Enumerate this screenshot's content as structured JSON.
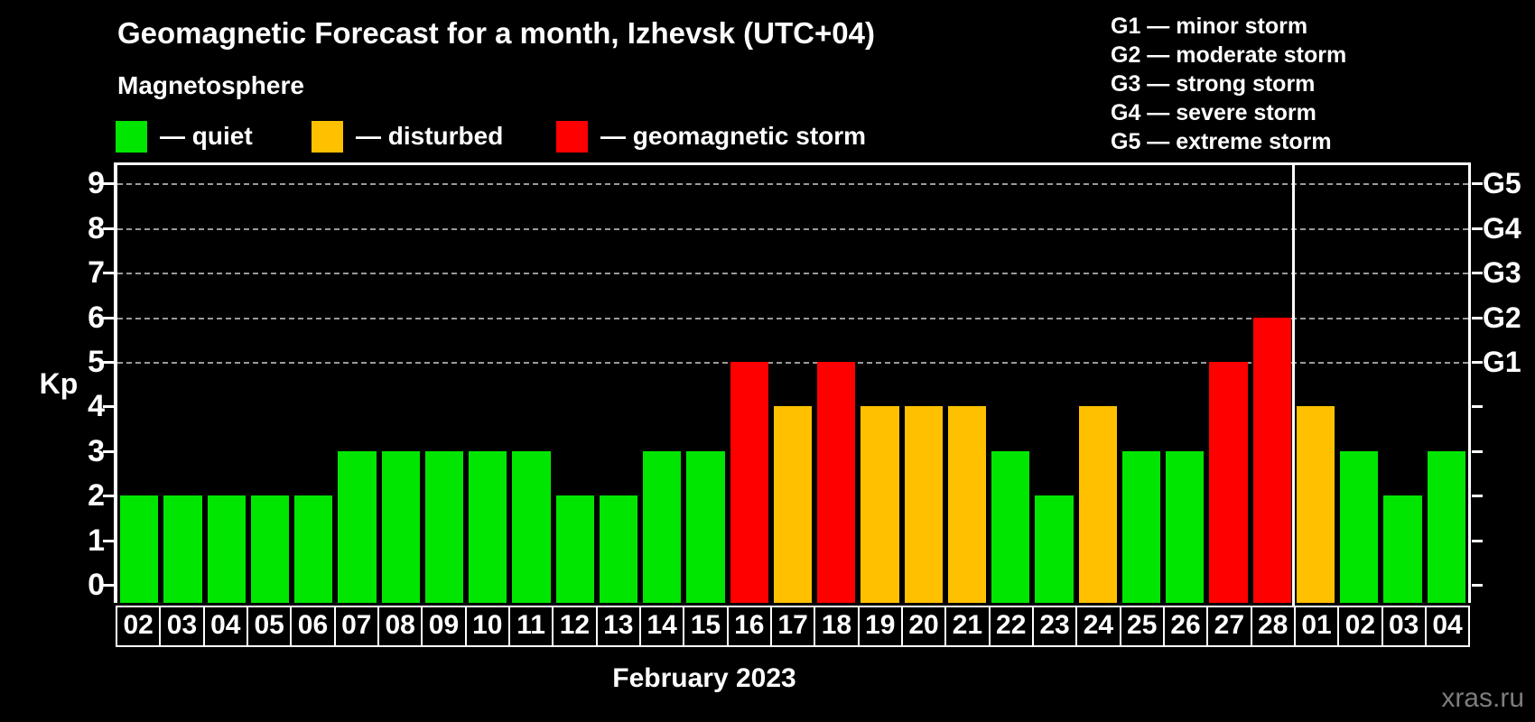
{
  "page": {
    "title": "Geomagnetic Forecast for a month, Izhevsk (UTC+04)",
    "subtitle": "Magnetosphere",
    "watermark": "xras.ru"
  },
  "legend": {
    "items": [
      {
        "label": "— quiet",
        "status": "quiet"
      },
      {
        "label": "— disturbed",
        "status": "disturbed"
      },
      {
        "label": "— geomagnetic storm",
        "status": "storm"
      }
    ]
  },
  "g_legend": {
    "items": [
      "G1 — minor storm",
      "G2 — moderate storm",
      "G3 — strong storm",
      "G4 — severe storm",
      "G5 — extreme storm"
    ]
  },
  "colors": {
    "quiet": "#00e600",
    "disturbed": "#ffc000",
    "storm": "#ff0000",
    "axis": "#ffffff",
    "grid": "#9a9a9a",
    "watermark": "#7d7d7d"
  },
  "chart_data": {
    "type": "bar",
    "title": "Geomagnetic Forecast for a month, Izhevsk (UTC+04)",
    "subtitle": "Magnetosphere",
    "xlabel": "February 2023",
    "ylabel": "Kp",
    "ylim": [
      0,
      9
    ],
    "yticks": [
      0,
      1,
      2,
      3,
      4,
      5,
      6,
      7,
      8,
      9
    ],
    "gridlines_at": [
      5,
      6,
      7,
      8,
      9
    ],
    "grid": "dashed, only at storm levels Kp 5-9",
    "legend_position": "top",
    "right_axis": [
      {
        "kp": 5,
        "label": "G1"
      },
      {
        "kp": 6,
        "label": "G2"
      },
      {
        "kp": 7,
        "label": "G3"
      },
      {
        "kp": 8,
        "label": "G4"
      },
      {
        "kp": 9,
        "label": "G5"
      }
    ],
    "month_separator_after_index": 26,
    "bars": [
      {
        "day": "02",
        "kp": 2,
        "status": "quiet"
      },
      {
        "day": "03",
        "kp": 2,
        "status": "quiet"
      },
      {
        "day": "04",
        "kp": 2,
        "status": "quiet"
      },
      {
        "day": "05",
        "kp": 2,
        "status": "quiet"
      },
      {
        "day": "06",
        "kp": 2,
        "status": "quiet"
      },
      {
        "day": "07",
        "kp": 3,
        "status": "quiet"
      },
      {
        "day": "08",
        "kp": 3,
        "status": "quiet"
      },
      {
        "day": "09",
        "kp": 3,
        "status": "quiet"
      },
      {
        "day": "10",
        "kp": 3,
        "status": "quiet"
      },
      {
        "day": "11",
        "kp": 3,
        "status": "quiet"
      },
      {
        "day": "12",
        "kp": 2,
        "status": "quiet"
      },
      {
        "day": "13",
        "kp": 2,
        "status": "quiet"
      },
      {
        "day": "14",
        "kp": 3,
        "status": "quiet"
      },
      {
        "day": "15",
        "kp": 3,
        "status": "quiet"
      },
      {
        "day": "16",
        "kp": 5,
        "status": "storm"
      },
      {
        "day": "17",
        "kp": 4,
        "status": "disturbed"
      },
      {
        "day": "18",
        "kp": 5,
        "status": "storm"
      },
      {
        "day": "19",
        "kp": 4,
        "status": "disturbed"
      },
      {
        "day": "20",
        "kp": 4,
        "status": "disturbed"
      },
      {
        "day": "21",
        "kp": 4,
        "status": "disturbed"
      },
      {
        "day": "22",
        "kp": 3,
        "status": "quiet"
      },
      {
        "day": "23",
        "kp": 2,
        "status": "quiet"
      },
      {
        "day": "24",
        "kp": 4,
        "status": "disturbed"
      },
      {
        "day": "25",
        "kp": 3,
        "status": "quiet"
      },
      {
        "day": "26",
        "kp": 3,
        "status": "quiet"
      },
      {
        "day": "27",
        "kp": 5,
        "status": "storm"
      },
      {
        "day": "28",
        "kp": 6,
        "status": "storm"
      },
      {
        "day": "01",
        "kp": 4,
        "status": "disturbed"
      },
      {
        "day": "02",
        "kp": 3,
        "status": "quiet"
      },
      {
        "day": "03",
        "kp": 2,
        "status": "quiet"
      },
      {
        "day": "04",
        "kp": 3,
        "status": "quiet"
      }
    ]
  }
}
